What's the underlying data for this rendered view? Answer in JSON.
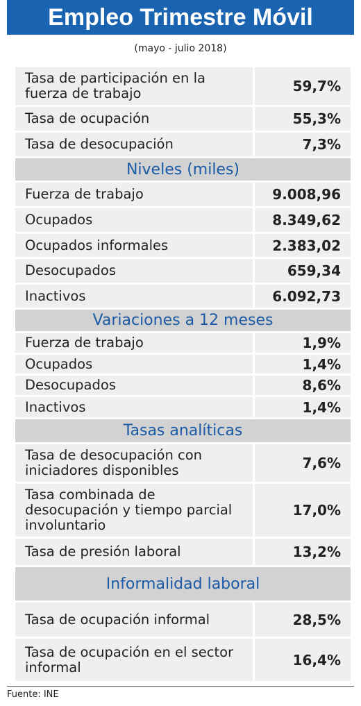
{
  "header": {
    "title": "Empleo Trimestre Móvil",
    "subtitle": "(mayo - julio 2018)"
  },
  "sections": [
    {
      "rows": [
        [
          "Tasa de participación en la fuerza de trabajo",
          "59,7%"
        ],
        [
          "Tasa de ocupación",
          "55,3%"
        ],
        [
          "Tasa de desocupación",
          "7,3%"
        ]
      ]
    },
    {
      "heading": "Niveles (miles)",
      "rows": [
        [
          "Fuerza de trabajo",
          "9.008,96"
        ],
        [
          "Ocupados",
          "8.349,62"
        ],
        [
          "Ocupados informales",
          "2.383,02"
        ],
        [
          "Desocupados",
          "659,34"
        ],
        [
          "Inactivos",
          "6.092,73"
        ]
      ]
    },
    {
      "heading": "Variaciones a 12 meses",
      "rows": [
        [
          "Fuerza de trabajo",
          "1,9%"
        ],
        [
          "Ocupados",
          "1,4%"
        ],
        [
          "Desocupados",
          "8,6%"
        ],
        [
          "Inactivos",
          "1,4%"
        ]
      ]
    },
    {
      "heading": "Tasas analíticas",
      "rows": [
        [
          "Tasa de desocupación con iniciadores disponibles",
          "7,6%"
        ],
        [
          "Tasa combinada de desocupación y tiempo parcial involuntario",
          "17,0%"
        ],
        [
          "Tasa de presión laboral",
          "13,2%"
        ]
      ]
    },
    {
      "heading": "Informalidad laboral",
      "rows": [
        [
          "Tasa de ocupación informal",
          "28,5%"
        ],
        [
          "Tasa de ocupación en el sector informal",
          "16,4%"
        ]
      ]
    }
  ],
  "footer": {
    "source": "Fuente: INE"
  }
}
